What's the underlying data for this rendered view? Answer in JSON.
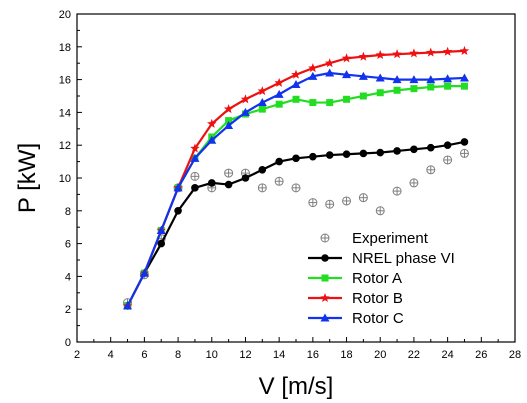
{
  "chart_data": {
    "type": "line",
    "title": "",
    "xlabel": "V [m/s]",
    "ylabel": "P [kW]",
    "xlim": [
      2,
      28
    ],
    "ylim": [
      0,
      20
    ],
    "xticks": [
      2,
      4,
      6,
      8,
      10,
      12,
      14,
      16,
      18,
      20,
      22,
      24,
      26,
      28
    ],
    "yticks": [
      0,
      2,
      4,
      6,
      8,
      10,
      12,
      14,
      16,
      18,
      20
    ],
    "grid": false,
    "legend_position": "bottom-right",
    "series": [
      {
        "name": "Experiment",
        "color": "#7f7f7f",
        "marker": "circle-plus",
        "line": false,
        "points": [
          [
            5,
            2.4
          ],
          [
            6,
            4.1
          ],
          [
            7,
            6.3
          ],
          [
            8,
            9.4
          ],
          [
            9,
            10.1
          ],
          [
            10,
            9.4
          ],
          [
            11,
            10.3
          ],
          [
            12,
            10.3
          ],
          [
            13,
            9.4
          ],
          [
            14,
            9.8
          ],
          [
            15,
            9.4
          ],
          [
            16,
            8.5
          ],
          [
            17,
            8.4
          ],
          [
            18,
            8.6
          ],
          [
            19,
            8.8
          ],
          [
            20,
            8.0
          ],
          [
            21,
            9.2
          ],
          [
            22,
            9.7
          ],
          [
            23,
            10.5
          ],
          [
            24,
            11.1
          ],
          [
            25,
            11.5
          ]
        ]
      },
      {
        "name": "NREL phase VI",
        "color": "#000000",
        "marker": "circle",
        "line": true,
        "points": [
          [
            5,
            2.2
          ],
          [
            6,
            4.2
          ],
          [
            7,
            6.0
          ],
          [
            8,
            8.0
          ],
          [
            9,
            9.4
          ],
          [
            10,
            9.7
          ],
          [
            11,
            9.6
          ],
          [
            12,
            10.0
          ],
          [
            13,
            10.5
          ],
          [
            14,
            11.0
          ],
          [
            15,
            11.2
          ],
          [
            16,
            11.3
          ],
          [
            17,
            11.4
          ],
          [
            18,
            11.45
          ],
          [
            19,
            11.5
          ],
          [
            20,
            11.55
          ],
          [
            21,
            11.65
          ],
          [
            22,
            11.75
          ],
          [
            23,
            11.85
          ],
          [
            24,
            12.0
          ],
          [
            25,
            12.2
          ]
        ]
      },
      {
        "name": "Rotor A",
        "color": "#22dd22",
        "marker": "square",
        "line": true,
        "points": [
          [
            5,
            2.2
          ],
          [
            6,
            4.2
          ],
          [
            7,
            6.8
          ],
          [
            8,
            9.4
          ],
          [
            9,
            11.2
          ],
          [
            10,
            12.5
          ],
          [
            11,
            13.5
          ],
          [
            12,
            13.9
          ],
          [
            13,
            14.2
          ],
          [
            14,
            14.5
          ],
          [
            15,
            14.8
          ],
          [
            16,
            14.6
          ],
          [
            17,
            14.6
          ],
          [
            18,
            14.8
          ],
          [
            19,
            15.0
          ],
          [
            20,
            15.2
          ],
          [
            21,
            15.35
          ],
          [
            22,
            15.45
          ],
          [
            23,
            15.55
          ],
          [
            24,
            15.6
          ],
          [
            25,
            15.6
          ]
        ]
      },
      {
        "name": "Rotor B",
        "color": "#ee1111",
        "marker": "star",
        "line": true,
        "points": [
          [
            5,
            2.2
          ],
          [
            6,
            4.2
          ],
          [
            7,
            6.8
          ],
          [
            8,
            9.4
          ],
          [
            9,
            11.8
          ],
          [
            10,
            13.3
          ],
          [
            11,
            14.2
          ],
          [
            12,
            14.8
          ],
          [
            13,
            15.3
          ],
          [
            14,
            15.8
          ],
          [
            15,
            16.3
          ],
          [
            16,
            16.7
          ],
          [
            17,
            17.0
          ],
          [
            18,
            17.3
          ],
          [
            19,
            17.4
          ],
          [
            20,
            17.5
          ],
          [
            21,
            17.55
          ],
          [
            22,
            17.6
          ],
          [
            23,
            17.65
          ],
          [
            24,
            17.7
          ],
          [
            25,
            17.75
          ]
        ]
      },
      {
        "name": "Rotor C",
        "color": "#1133ee",
        "marker": "triangle",
        "line": true,
        "points": [
          [
            5,
            2.2
          ],
          [
            6,
            4.2
          ],
          [
            7,
            6.8
          ],
          [
            8,
            9.4
          ],
          [
            9,
            11.2
          ],
          [
            10,
            12.3
          ],
          [
            11,
            13.2
          ],
          [
            12,
            14.0
          ],
          [
            13,
            14.6
          ],
          [
            14,
            15.1
          ],
          [
            15,
            15.7
          ],
          [
            16,
            16.2
          ],
          [
            17,
            16.4
          ],
          [
            18,
            16.3
          ],
          [
            19,
            16.2
          ],
          [
            20,
            16.1
          ],
          [
            21,
            16.0
          ],
          [
            22,
            16.0
          ],
          [
            23,
            16.0
          ],
          [
            24,
            16.05
          ],
          [
            25,
            16.1
          ]
        ]
      }
    ]
  }
}
